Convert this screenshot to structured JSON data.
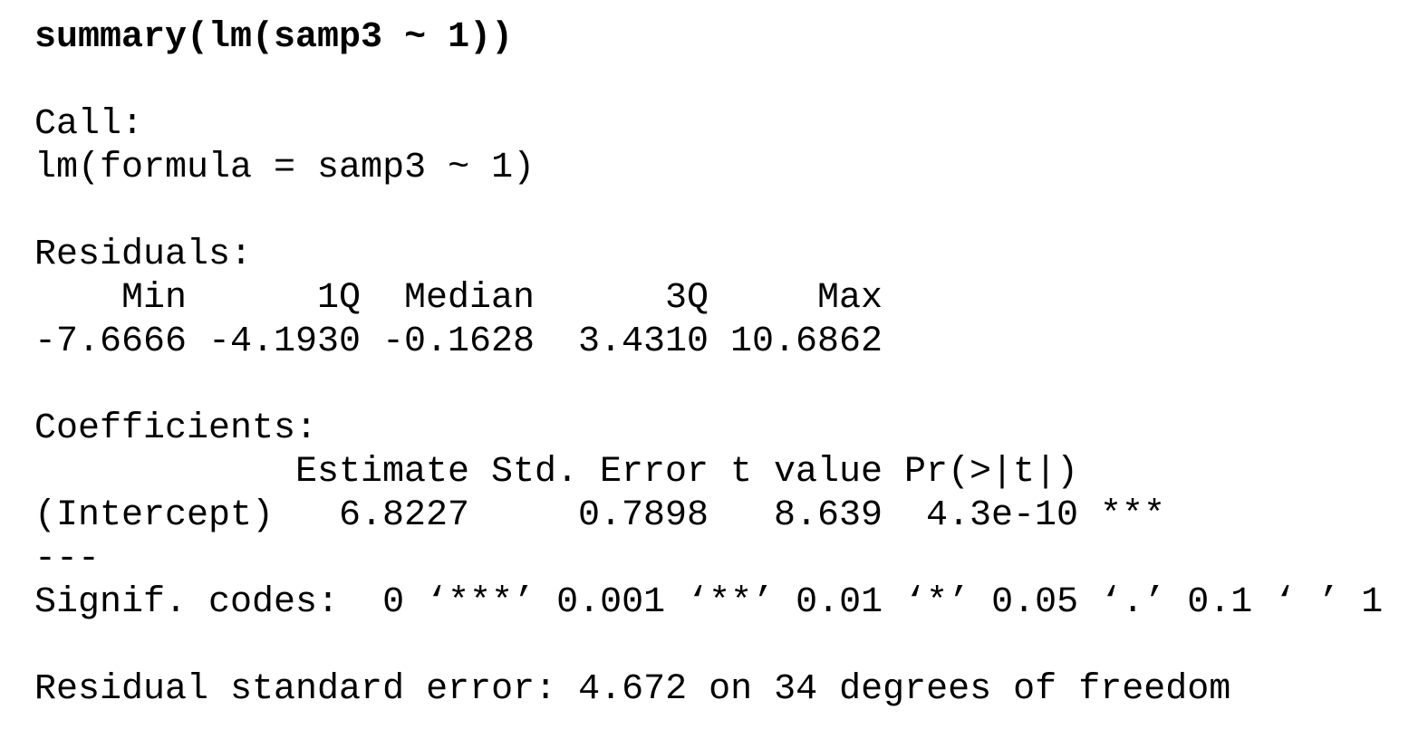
{
  "command": "summary(lm(samp3 ~ 1))",
  "call": {
    "heading": "Call:",
    "formula": "lm(formula = samp3 ~ 1)"
  },
  "residuals": {
    "heading": "Residuals:",
    "columns": [
      "Min",
      "1Q",
      "Median",
      "3Q",
      "Max"
    ],
    "values": [
      "-7.6666",
      "-4.1930",
      "-0.1628",
      "3.4310",
      "10.6862"
    ]
  },
  "coefficients": {
    "heading": "Coefficients:",
    "columns": [
      "Estimate",
      "Std. Error",
      "t value",
      "Pr(>|t|)"
    ],
    "rows": [
      {
        "name": "(Intercept)",
        "values": [
          "6.8227",
          "0.7898",
          "8.639",
          "4.3e-10"
        ],
        "stars": "***"
      }
    ]
  },
  "separator": "---",
  "signif_codes": "Signif. codes:  0 ‘***’ 0.001 ‘**’ 0.01 ‘*’ 0.05 ‘.’ 0.1 ‘ ’ 1",
  "residual_standard_error": "Residual standard error: 4.672 on 34 degrees of freedom"
}
